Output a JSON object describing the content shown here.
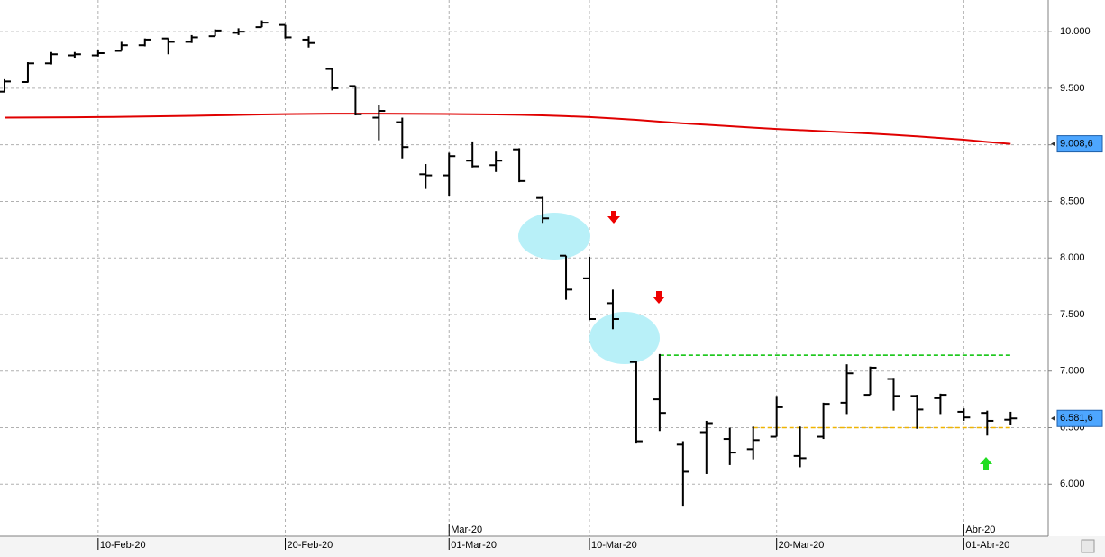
{
  "chart_data": {
    "type": "ohlc",
    "categories": [
      null,
      null,
      null,
      null,
      "10-Feb-20",
      null,
      null,
      null,
      null,
      null,
      null,
      null,
      "20-Feb-20",
      null,
      null,
      null,
      null,
      null,
      null,
      "01-Mar-20",
      null,
      null,
      null,
      null,
      null,
      "10-Mar-20",
      null,
      null,
      null,
      null,
      null,
      null,
      null,
      "20-Mar-20",
      null,
      null,
      null,
      null,
      null,
      null,
      null,
      "01-Abr-20",
      null,
      null
    ],
    "month_labels": [
      null,
      null,
      null,
      null,
      null,
      null,
      null,
      null,
      null,
      null,
      null,
      null,
      null,
      null,
      null,
      null,
      null,
      null,
      null,
      "Mar-20",
      null,
      null,
      null,
      null,
      null,
      null,
      null,
      null,
      null,
      null,
      null,
      null,
      null,
      null,
      null,
      null,
      null,
      null,
      null,
      null,
      null,
      "Abr-20",
      null,
      null
    ],
    "ohlc": {
      "color": "#000000",
      "open": [
        9470,
        9555,
        9720,
        9790,
        9790,
        9830,
        9880,
        9940,
        9910,
        9960,
        9990,
        10040,
        10060,
        9930,
        9670,
        9520,
        9240,
        9200,
        8740,
        8730,
        8860,
        8820,
        8960,
        8530,
        8020,
        7820,
        7600,
        7080,
        6750,
        6350,
        6460,
        6400,
        6310,
        6420,
        6250,
        6420,
        6720,
        6790,
        6930,
        6780,
        6760,
        6640,
        6630,
        6570
      ],
      "high": [
        9580,
        9730,
        9820,
        9820,
        9840,
        9910,
        9940,
        9940,
        9970,
        10020,
        10030,
        10100,
        10060,
        9960,
        9680,
        9520,
        9350,
        9240,
        8830,
        8930,
        9030,
        8940,
        8970,
        8540,
        8020,
        8010,
        7720,
        7090,
        7150,
        6380,
        6560,
        6500,
        6510,
        6780,
        6510,
        6720,
        7060,
        7040,
        6940,
        6790,
        6800,
        6670,
        6650,
        6640
      ],
      "low": [
        9470,
        9550,
        9710,
        9770,
        9780,
        9830,
        9870,
        9800,
        9900,
        9960,
        9970,
        10040,
        9940,
        9860,
        9480,
        9260,
        9040,
        8880,
        8610,
        8550,
        8800,
        8760,
        8670,
        8310,
        7630,
        7450,
        7370,
        6360,
        6470,
        5810,
        6090,
        6170,
        6220,
        6420,
        6150,
        6400,
        6620,
        6790,
        6650,
        6490,
        6620,
        6560,
        6430,
        6520
      ],
      "close": [
        9560,
        9720,
        9800,
        9800,
        9810,
        9880,
        9930,
        9910,
        9950,
        10010,
        10000,
        10080,
        9950,
        9900,
        9500,
        9270,
        9300,
        8980,
        8730,
        8900,
        8810,
        8860,
        8680,
        8350,
        7720,
        7460,
        7460,
        6380,
        6630,
        6110,
        6540,
        6280,
        6390,
        6680,
        6230,
        6710,
        6980,
        7030,
        6780,
        6660,
        6790,
        6590,
        6560,
        6581.6
      ]
    },
    "lines": [
      {
        "color": "#e00000",
        "dash": false,
        "values": [
          9240,
          9241,
          9242,
          9243,
          9245,
          9247,
          9250,
          9253,
          9256,
          9260,
          9264,
          9268,
          9271,
          9273,
          9275,
          9275,
          9275,
          9274,
          9273,
          9272,
          9270,
          9268,
          9265,
          9260,
          9253,
          9245,
          9233,
          9220,
          9205,
          9190,
          9178,
          9165,
          9152,
          9140,
          9130,
          9120,
          9110,
          9100,
          9088,
          9075,
          9060,
          9045,
          9025,
          9008.6
        ]
      },
      {
        "color": "#00c000",
        "dash": true,
        "values": [
          null,
          null,
          null,
          null,
          null,
          null,
          null,
          null,
          null,
          null,
          null,
          null,
          null,
          null,
          null,
          null,
          null,
          null,
          null,
          null,
          null,
          null,
          null,
          null,
          null,
          null,
          null,
          null,
          7140,
          7140,
          7140,
          7140,
          7140,
          7140,
          7140,
          7140,
          7140,
          7140,
          7140,
          7140,
          7140,
          7140,
          7140,
          7140
        ]
      },
      {
        "color": "#f0b400",
        "dash": true,
        "values": [
          null,
          null,
          null,
          null,
          null,
          null,
          null,
          null,
          null,
          null,
          null,
          null,
          null,
          null,
          null,
          null,
          null,
          null,
          null,
          null,
          null,
          null,
          null,
          null,
          null,
          null,
          null,
          null,
          null,
          null,
          null,
          null,
          6500,
          6500,
          6500,
          6500,
          6500,
          6500,
          6500,
          6500,
          6500,
          6500,
          6500,
          6500
        ]
      }
    ],
    "price_tags": [
      {
        "value": 9008.6,
        "label": "9.008,6"
      },
      {
        "value": 6581.6,
        "label": "6.581,6"
      }
    ],
    "ylim": [
      5540,
      10280
    ],
    "yticks": [
      {
        "value": 6000,
        "label": "6.000"
      },
      {
        "value": 6500,
        "label": "6.500"
      },
      {
        "value": 7000,
        "label": "7.000"
      },
      {
        "value": 7500,
        "label": "7.500"
      },
      {
        "value": 8000,
        "label": "8.000"
      },
      {
        "value": 8500,
        "label": "8.500"
      },
      {
        "value": 9000,
        "label": "9.000"
      },
      {
        "value": 9500,
        "label": "9.500"
      },
      {
        "value": 10000,
        "label": "10.000"
      }
    ],
    "grid": true
  }
}
